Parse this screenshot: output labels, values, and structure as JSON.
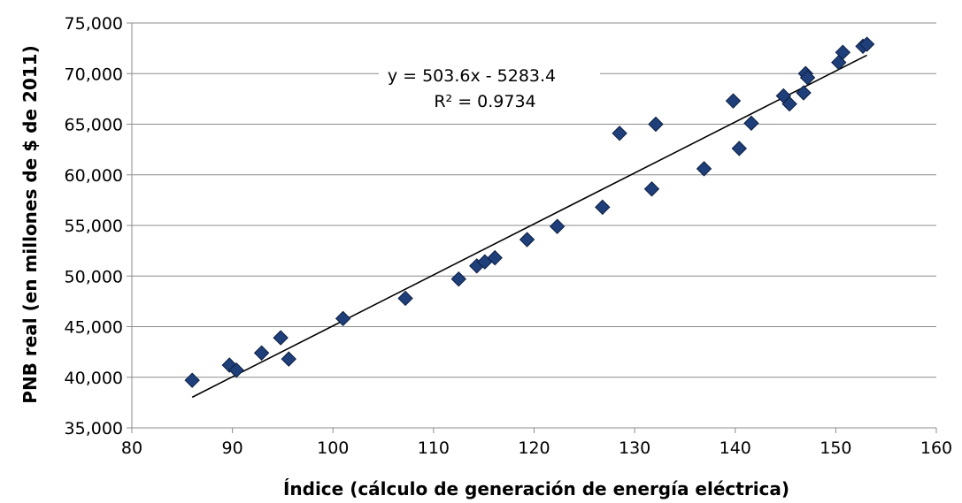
{
  "chart_data": {
    "type": "scatter",
    "title": "",
    "xlabel": "Índice (cálculo de generación de energía eléctrica)",
    "ylabel": "PNB real (en millones de $ de 2011)",
    "xlim": [
      80,
      160
    ],
    "ylim": [
      35000,
      75000
    ],
    "x_ticks": [
      80,
      90,
      100,
      110,
      120,
      130,
      140,
      150,
      160
    ],
    "y_ticks": [
      35000,
      40000,
      45000,
      50000,
      55000,
      60000,
      65000,
      70000,
      75000
    ],
    "x_tick_labels": [
      "80",
      "90",
      "100",
      "110",
      "120",
      "130",
      "140",
      "150",
      "160"
    ],
    "y_tick_labels": [
      "35,000",
      "40,000",
      "45,000",
      "50,000",
      "55,000",
      "60,000",
      "65,000",
      "70,000",
      "75,000"
    ],
    "grid": "horizontal",
    "marker": "diamond",
    "marker_color": "#1f3f7a",
    "series": [
      {
        "x": [
          86.0,
          89.7,
          90.4,
          92.9,
          94.8,
          95.6,
          101.0,
          107.2,
          112.5,
          114.3,
          115.1,
          116.1,
          119.3,
          122.3,
          126.8,
          128.5,
          131.7,
          132.1,
          136.9,
          139.8,
          140.4,
          141.6,
          144.8,
          145.4,
          146.8,
          147.0,
          147.2,
          150.3,
          150.7,
          152.7,
          153.1
        ],
        "y": [
          39700,
          41200,
          40700,
          42400,
          43900,
          41800,
          45800,
          47800,
          49700,
          51000,
          51400,
          51800,
          53600,
          54900,
          56800,
          64100,
          58600,
          65000,
          60600,
          67300,
          62600,
          65100,
          67800,
          67000,
          68100,
          70000,
          69600,
          71100,
          72100,
          72700,
          72900
        ]
      }
    ],
    "trendline": {
      "slope": 503.6,
      "intercept": -5283.4,
      "x_range": [
        86.0,
        153.1
      ],
      "equation": "y = 503.6x - 5283.4",
      "r2": "R² = 0.9734"
    }
  }
}
